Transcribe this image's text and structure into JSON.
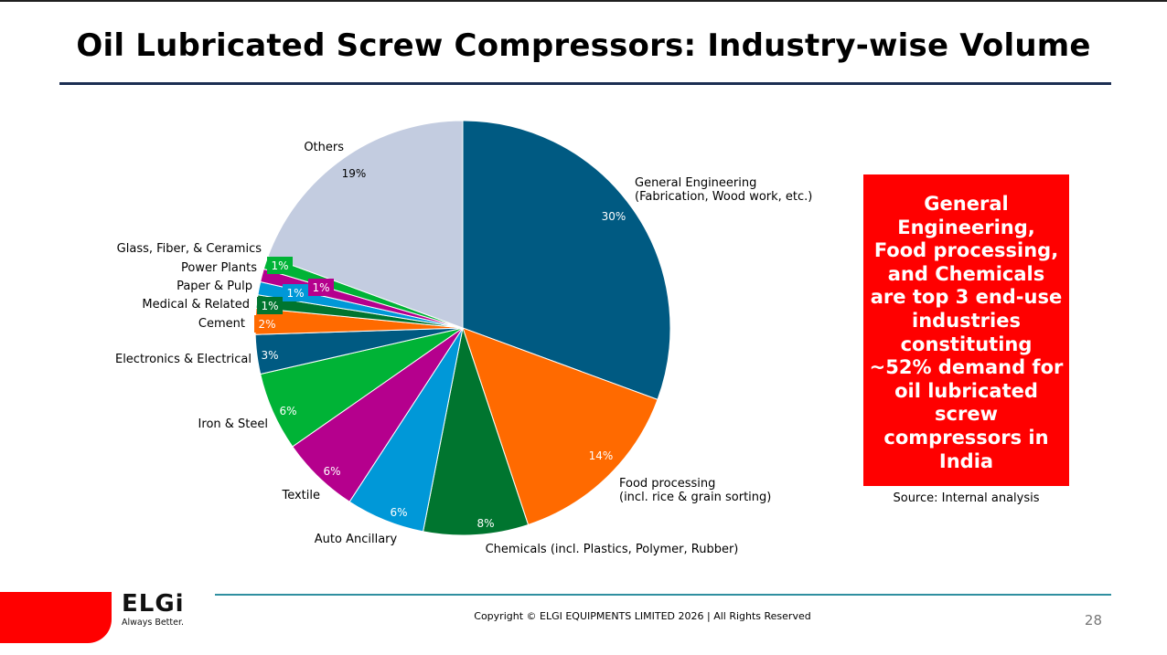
{
  "title": "Oil Lubricated Screw Compressors: Industry-wise Volume",
  "chart_data": {
    "type": "pie",
    "title": "Oil Lubricated Screw Compressors: Industry-wise Volume",
    "slices": [
      {
        "label": [
          "General Engineering",
          "(Fabrication, Wood work, etc.)"
        ],
        "value": 30,
        "percent_label": "30%",
        "color": "#005a82"
      },
      {
        "label": [
          "Food processing",
          "(incl. rice & grain sorting)"
        ],
        "value": 14,
        "percent_label": "14%",
        "color": "#ff6a00"
      },
      {
        "label": [
          "Chemicals (incl. Plastics, Polymer, Rubber)"
        ],
        "value": 8,
        "percent_label": "8%",
        "color": "#00752f"
      },
      {
        "label": [
          "Auto Ancillary"
        ],
        "value": 6,
        "percent_label": "6%",
        "color": "#0098d8"
      },
      {
        "label": [
          "Textile"
        ],
        "value": 6,
        "percent_label": "6%",
        "color": "#b5008d"
      },
      {
        "label": [
          "Iron & Steel"
        ],
        "value": 6,
        "percent_label": "6%",
        "color": "#00b336"
      },
      {
        "label": [
          "Electronics & Electrical"
        ],
        "value": 3,
        "percent_label": "3%",
        "color": "#005a82"
      },
      {
        "label": [
          "Cement"
        ],
        "value": 2,
        "percent_label": "2%",
        "color": "#ff6a00"
      },
      {
        "label": [
          "Medical & Related"
        ],
        "value": 1,
        "percent_label": "1%",
        "color": "#00752f"
      },
      {
        "label": [
          "Paper & Pulp"
        ],
        "value": 1,
        "percent_label": "1%",
        "color": "#0098d8"
      },
      {
        "label": [
          "Power Plants"
        ],
        "value": 1,
        "percent_label": "1%",
        "color": "#b5008d"
      },
      {
        "label": [
          "Glass, Fiber, & Ceramics"
        ],
        "value": 1,
        "percent_label": "1%",
        "color": "#00b336"
      },
      {
        "label": [
          "Others"
        ],
        "value": 19,
        "percent_label": "19%",
        "color": "#c3cce0"
      }
    ]
  },
  "callout": {
    "text": "General Engineering, Food processing, and Chemicals are top 3 end-use industries constituting ~52% demand for oil lubricated screw compressors in India"
  },
  "source": "Source: Internal analysis",
  "footer": {
    "logo_name": "ELGi",
    "logo_tagline": "Always Better.",
    "copyright": "Copyright © ELGI EQUIPMENTS LIMITED 2026 | All Rights Reserved",
    "page_number": "28"
  },
  "colors": {
    "accent_red": "#ff0000",
    "title_rule": "#1c2e52",
    "footer_rule": "#2f8fa0"
  }
}
